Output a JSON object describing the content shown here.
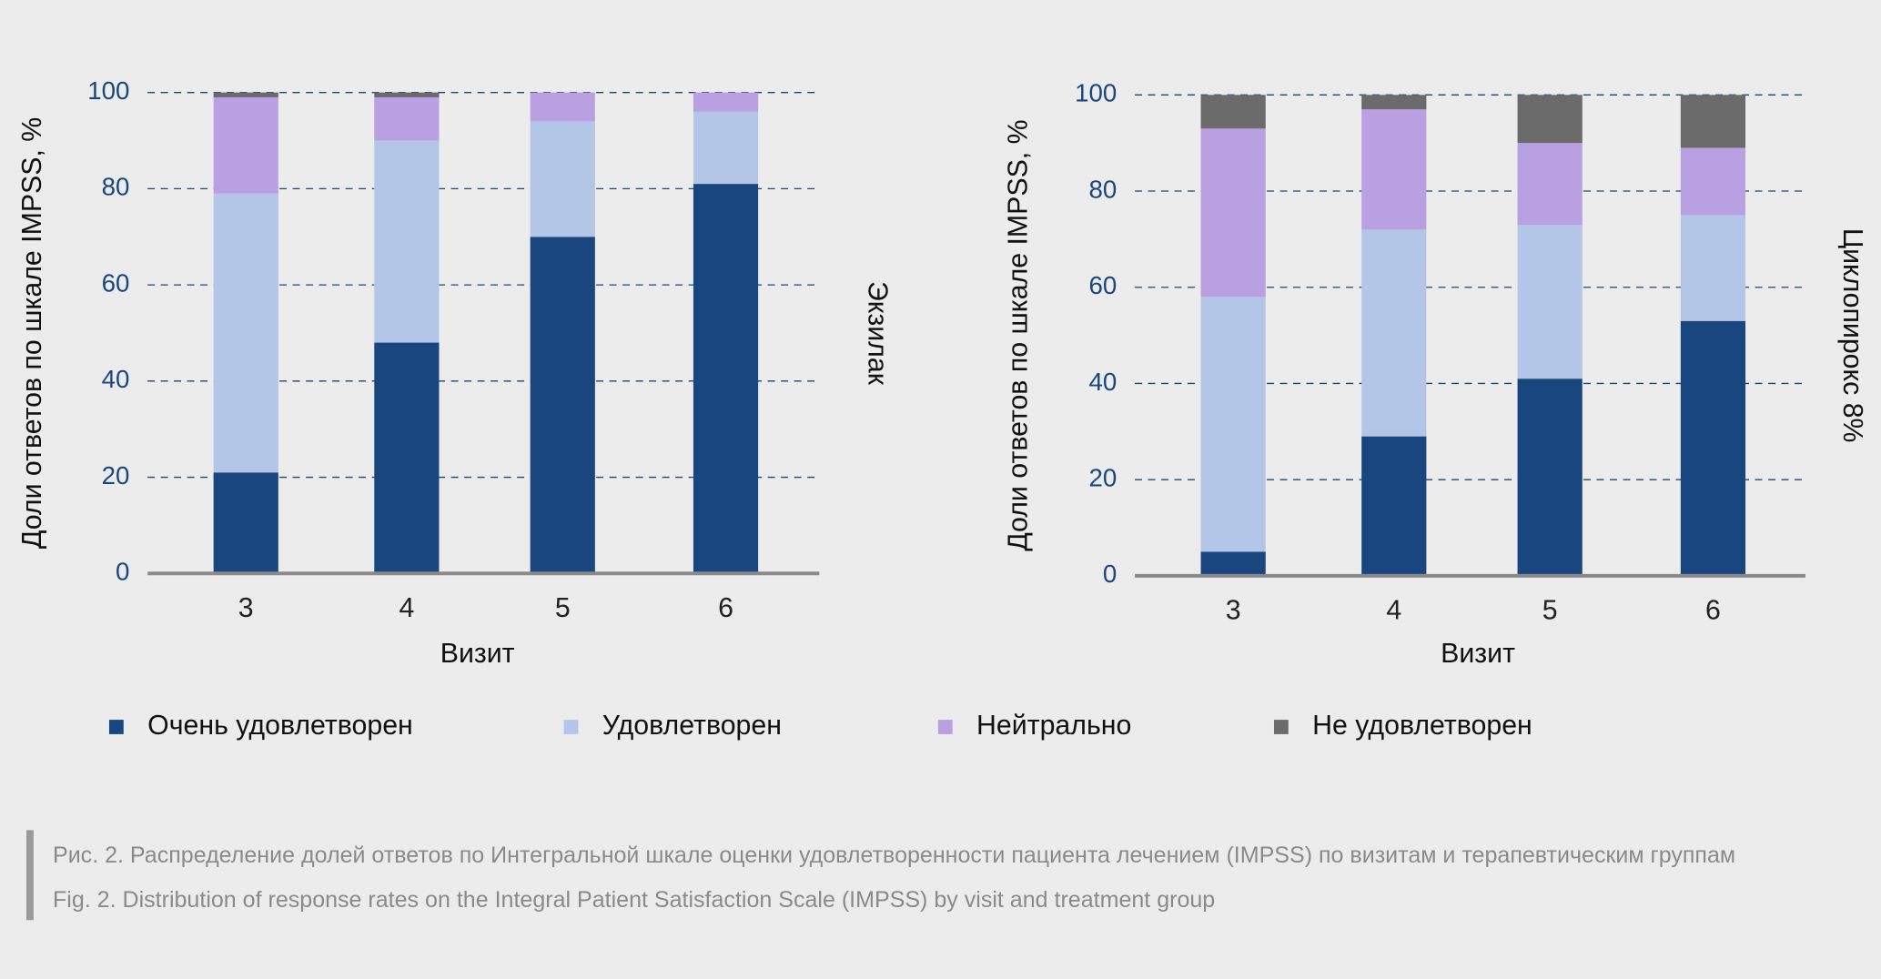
{
  "chart_data": [
    {
      "type": "stacked_bar",
      "title": "Экзилак",
      "xlabel": "Визит",
      "ylabel": "Доли ответов по шкале IMPSS, %",
      "categories": [
        "3",
        "4",
        "5",
        "6"
      ],
      "series": [
        {
          "name": "Очень удовлетворен",
          "color": "#1a4680",
          "values": [
            21,
            48,
            70,
            81
          ]
        },
        {
          "name": "Удовлетворен",
          "color": "#b3c6e7",
          "values": [
            58,
            42,
            24,
            15
          ]
        },
        {
          "name": "Нейтрально",
          "color": "#b9a0e0",
          "values": [
            20,
            9,
            6,
            4
          ]
        },
        {
          "name": "Не удовлетворен",
          "color": "#6b6b6b",
          "values": [
            1,
            1,
            0,
            0
          ]
        }
      ],
      "ylim": [
        0,
        100
      ],
      "yticks": [
        0,
        20,
        40,
        60,
        80,
        100
      ],
      "grid": true
    },
    {
      "type": "stacked_bar",
      "title": "Циклопирокс 8%",
      "xlabel": "Визит",
      "ylabel": "Доли ответов по шкале IMPSS, %",
      "categories": [
        "3",
        "4",
        "5",
        "6"
      ],
      "series": [
        {
          "color": "#1a4680",
          "values": [
            5,
            29,
            41,
            53
          ]
        },
        {
          "color": "#b3c6e7",
          "values": [
            53,
            43,
            32,
            22
          ]
        },
        {
          "color": "#b9a0e0",
          "values": [
            35,
            25,
            17,
            14
          ]
        },
        {
          "color": "#6b6b6b",
          "values": [
            7,
            3,
            10,
            11
          ]
        }
      ],
      "ylim": [
        0,
        100
      ],
      "yticks": [
        0,
        20,
        40,
        60,
        80,
        100
      ],
      "grid": true
    }
  ],
  "caption_ru": "Рис. 2. Распределение долей ответов по Интегральной шкале оценки удовлетворенности пациента лечением (IMPSS) по визитам и терапевтическим группам",
  "caption_en": "Fig. 2. Distribution of response rates on the Integral Patient Satisfaction Scale (IMPSS) by visit and treatment group"
}
